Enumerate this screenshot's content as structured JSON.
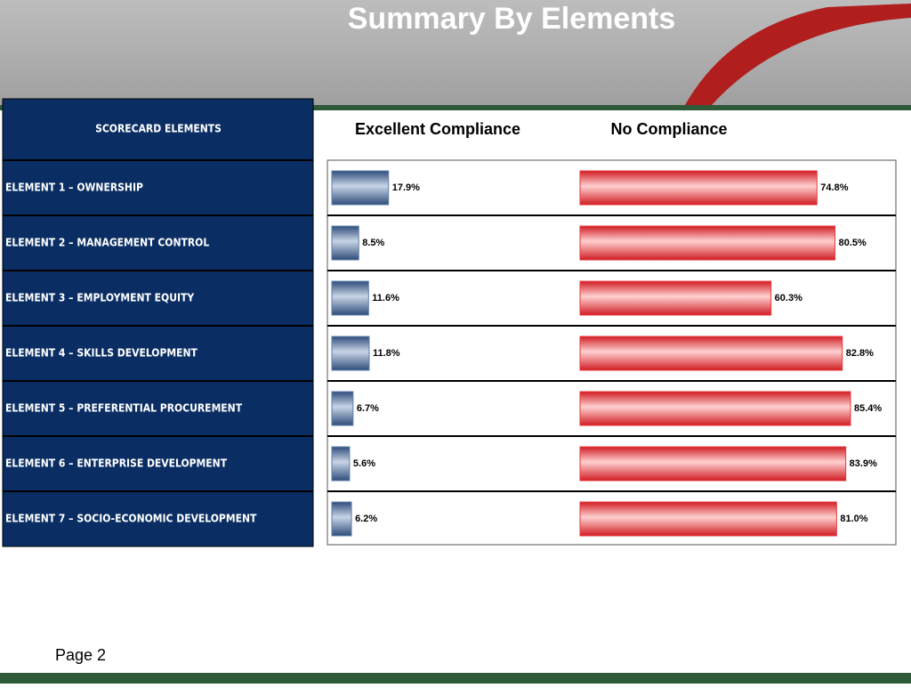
{
  "chart_data": {
    "type": "bar",
    "title": "Summary By Elements",
    "categories_header": "SCORECARD ELEMENTS",
    "categories": [
      "ELEMENT 1 – OWNERSHIP",
      "ELEMENT 2 – MANAGEMENT CONTROL",
      "ELEMENT 3 – EMPLOYMENT EQUITY",
      "ELEMENT 4 – SKILLS DEVELOPMENT",
      "ELEMENT 5 – PREFERENTIAL PROCUREMENT",
      "ELEMENT 6 – ENTERPRISE DEVELOPMENT",
      "ELEMENT 7 – SOCIO-ECONOMIC DEVELOPMENT"
    ],
    "series": [
      {
        "name": "Excellent Compliance",
        "color": "#5f7fa8",
        "values": [
          17.9,
          8.5,
          11.6,
          11.8,
          6.7,
          5.6,
          6.2
        ],
        "value_labels": [
          "17.9%",
          "8.5%",
          "11.6%",
          "11.8%",
          "6.7%",
          "5.6%",
          "6.2%"
        ]
      },
      {
        "name": "No Compliance",
        "color": "#e8383c",
        "values": [
          74.8,
          80.5,
          60.3,
          82.8,
          85.4,
          83.9,
          81.0
        ],
        "value_labels": [
          "74.8%",
          "80.5%",
          "60.3%",
          "82.8%",
          "85.4%",
          "83.9%",
          "81.0%"
        ]
      }
    ]
  },
  "footer": {
    "page": "Page 2"
  }
}
